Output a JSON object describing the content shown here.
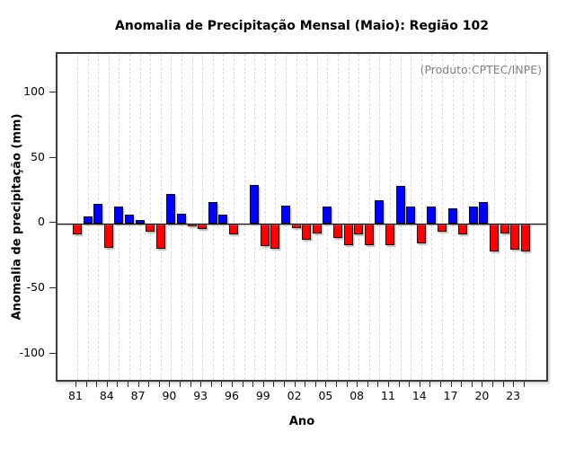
{
  "chart_data": {
    "type": "bar",
    "title": "Anomalia de Precipitação Mensal (Maio): Região 102",
    "annotation": "(Produto:CPTEC/INPE)",
    "xlabel": "Ano",
    "ylabel": "Anomalia de precipitação (mm)",
    "categories": [
      "81",
      "82",
      "83",
      "84",
      "85",
      "86",
      "87",
      "88",
      "89",
      "90",
      "91",
      "92",
      "93",
      "94",
      "95",
      "96",
      "97",
      "98",
      "99",
      "00",
      "01",
      "02",
      "03",
      "04",
      "05",
      "06",
      "07",
      "08",
      "09",
      "10",
      "11",
      "12",
      "13",
      "14",
      "15",
      "16",
      "17",
      "18",
      "19",
      "20",
      "21",
      "22",
      "23",
      "24"
    ],
    "values": [
      -8,
      6,
      15,
      -18,
      13,
      7,
      3,
      -6,
      -19,
      23,
      8,
      -2,
      -4,
      17,
      7,
      -8,
      0,
      30,
      -17,
      -19,
      14,
      -3,
      -12,
      -7,
      13,
      -11,
      -16,
      -8,
      -16,
      18,
      -16,
      29,
      13,
      -15,
      13,
      -6,
      12,
      -8,
      13,
      17,
      -21,
      -7,
      -20,
      -21
    ],
    "yticks": [
      100,
      50,
      0,
      -50,
      -100
    ],
    "ylim": [
      -122,
      130
    ],
    "xtick_label_every": 3,
    "grid": "vertical-dashed",
    "positive_color": "#0000ff",
    "negative_color": "#ff0000",
    "background_color": "#ffffff",
    "legend": "none"
  }
}
